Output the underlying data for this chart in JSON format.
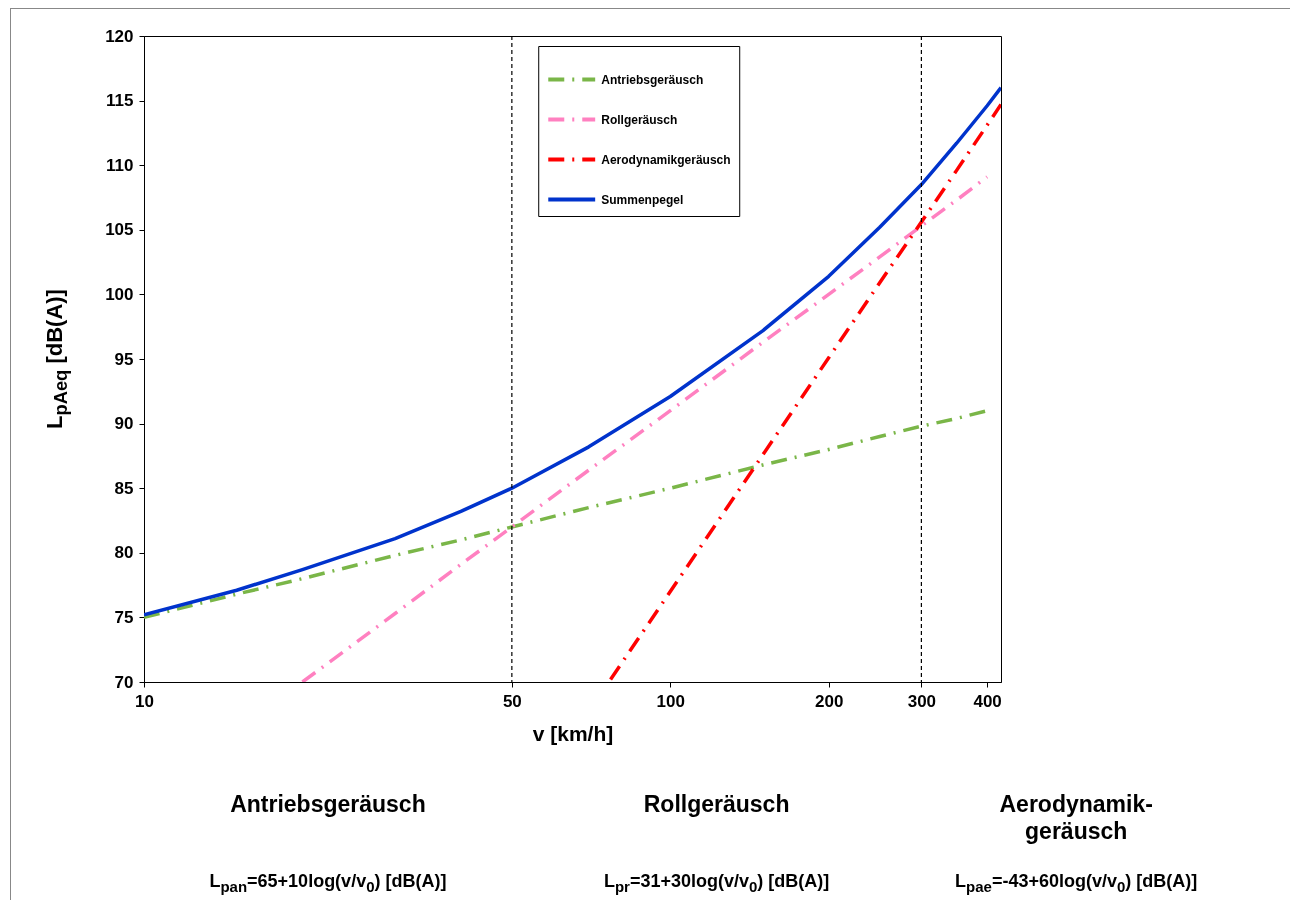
{
  "chart_data": {
    "type": "line",
    "xlabel": "v [km/h]",
    "ylabel": "L$_{pAeq}$ [dB(A)]",
    "log": "x",
    "xlim": [
      10,
      425
    ],
    "xticks": [
      10,
      50,
      100,
      200,
      300,
      400
    ],
    "ylim": [
      70,
      120
    ],
    "yticks": [
      70,
      75,
      80,
      85,
      90,
      95,
      100,
      105,
      110,
      115,
      120
    ],
    "grid": false,
    "legend": "top",
    "series": [
      {
        "name": "Antriebsgeräusch",
        "color": "#7ab648",
        "line_style": "dashed",
        "x": [
          10,
          15,
          20,
          30,
          40,
          50,
          70,
          100,
          150,
          200,
          250,
          300,
          350,
          400
        ],
        "values": [
          75,
          76.8,
          78,
          79.8,
          81,
          82,
          83.5,
          85,
          86.8,
          88,
          89,
          89.8,
          90.4,
          91
        ]
      },
      {
        "name": "Rollgeräusch",
        "color": "#ff80c0",
        "line_style": "dashed",
        "x": [
          20,
          30,
          40,
          50,
          70,
          100,
          150,
          200,
          250,
          300,
          350,
          400
        ],
        "values": [
          70,
          75.3,
          79.1,
          82,
          86.4,
          91,
          96.3,
          100,
          102.9,
          105.3,
          107.3,
          109.1
        ]
      },
      {
        "name": "Aerodynamikgeräusch",
        "color": "#ff0000",
        "line_style": "dashed",
        "x": [
          77,
          100,
          150,
          200,
          250,
          300,
          350,
          400,
          425
        ],
        "values": [
          70.2,
          77,
          87.6,
          95.1,
          100.9,
          105.6,
          109.6,
          113.1,
          114.7
        ]
      },
      {
        "name": "Summenpegel",
        "color": "#0033cc",
        "line_style": "solid",
        "x": [
          10,
          15,
          20,
          30,
          40,
          50,
          70,
          100,
          150,
          200,
          250,
          300,
          350,
          400,
          425
        ],
        "values": [
          75.2,
          77.1,
          78.7,
          81.1,
          83.2,
          85,
          88.2,
          92.1,
          97.2,
          101.4,
          105.2,
          108.5,
          111.7,
          114.6,
          116
        ]
      }
    ],
    "ref_lines": [
      {
        "axis": "x",
        "value": 50,
        "line_style": "dashed"
      },
      {
        "axis": "x",
        "value": 300,
        "line_style": "dashed"
      }
    ],
    "annotations": [
      "Antriebsgeräusch",
      "Rollgeräusch",
      "Aerodynamik-geräusch",
      "L$_{pan}$=65+10log(v/v$_{0}$) [dB(A)]",
      "L$_{pr}$=31+30log(v/v$_{0}$) [dB(A)]",
      "L$_{pae}$=-43+60log(v/v$_{0}$) [dB(A)]"
    ]
  }
}
